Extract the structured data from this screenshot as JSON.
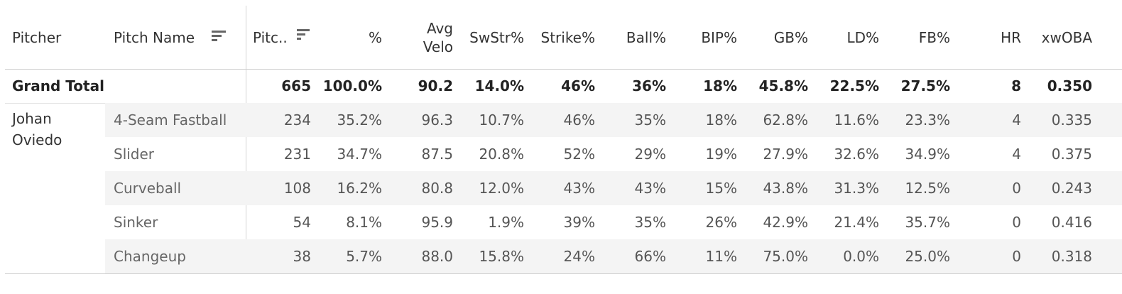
{
  "chart_data": {
    "type": "table",
    "row_dimensions": [
      "Pitcher",
      "Pitch Name"
    ],
    "columns": [
      "Pitc..",
      "%",
      "Avg Velo",
      "SwStr%",
      "Strike%",
      "Ball%",
      "BIP%",
      "GB%",
      "LD%",
      "FB%",
      "HR",
      "xwOBA"
    ],
    "sorted_columns": [
      "Pitch Name",
      "Pitc.."
    ],
    "grand_total": {
      "label": "Grand Total",
      "values": [
        "665",
        "100.0%",
        "90.2",
        "14.0%",
        "46%",
        "36%",
        "18%",
        "45.8%",
        "22.5%",
        "27.5%",
        "8",
        "0.350"
      ]
    },
    "groups": [
      {
        "pitcher": "Johan Oviedo",
        "rows": [
          {
            "pitch": "4-Seam Fastball",
            "values": [
              "234",
              "35.2%",
              "96.3",
              "10.7%",
              "46%",
              "35%",
              "18%",
              "62.8%",
              "11.6%",
              "23.3%",
              "4",
              "0.335"
            ]
          },
          {
            "pitch": "Slider",
            "values": [
              "231",
              "34.7%",
              "87.5",
              "20.8%",
              "52%",
              "29%",
              "19%",
              "27.9%",
              "32.6%",
              "34.9%",
              "4",
              "0.375"
            ]
          },
          {
            "pitch": "Curveball",
            "values": [
              "108",
              "16.2%",
              "80.8",
              "12.0%",
              "43%",
              "43%",
              "15%",
              "43.8%",
              "31.3%",
              "12.5%",
              "0",
              "0.243"
            ]
          },
          {
            "pitch": "Sinker",
            "values": [
              "54",
              "8.1%",
              "95.9",
              "1.9%",
              "39%",
              "35%",
              "26%",
              "42.9%",
              "21.4%",
              "35.7%",
              "0",
              "0.416"
            ]
          },
          {
            "pitch": "Changeup",
            "values": [
              "38",
              "5.7%",
              "88.0",
              "15.8%",
              "24%",
              "66%",
              "11%",
              "75.0%",
              "0.0%",
              "25.0%",
              "0",
              "0.318"
            ]
          }
        ]
      }
    ]
  }
}
